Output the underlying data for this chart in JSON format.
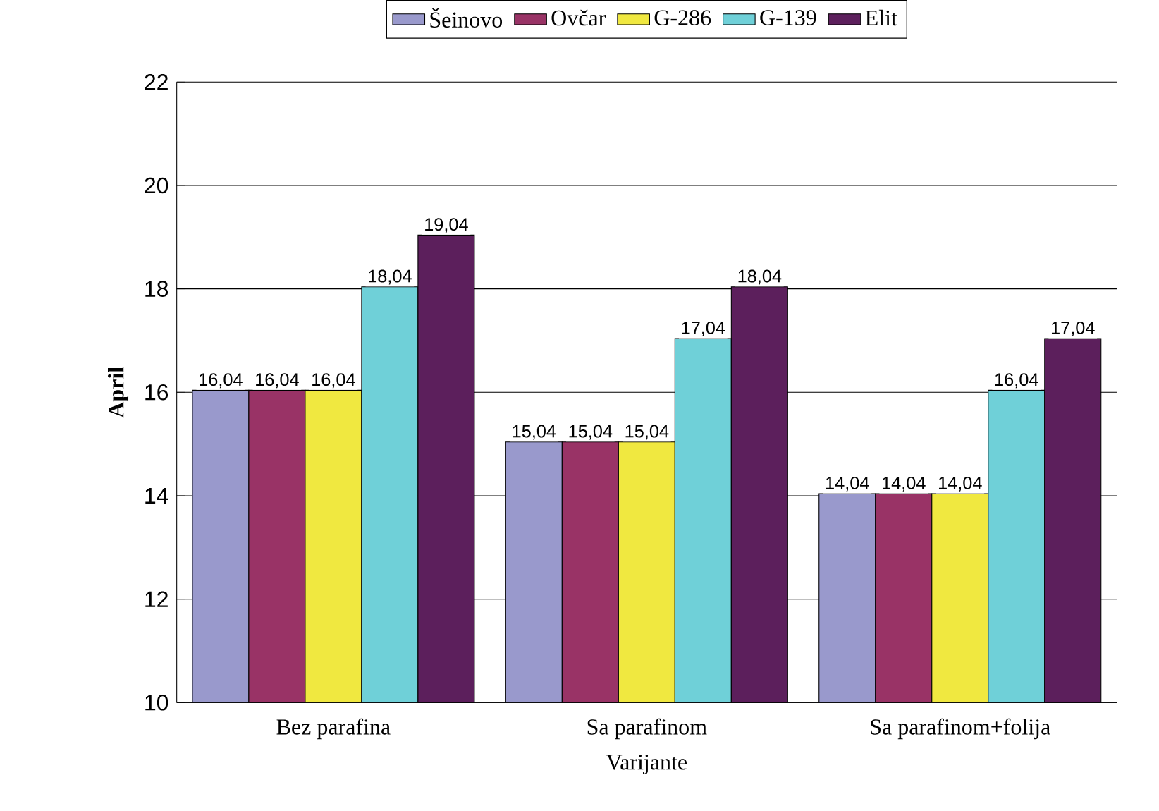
{
  "chart_data": {
    "type": "bar",
    "xlabel": "Varijante",
    "ylabel": "April",
    "categories": [
      "Bez parafina",
      "Sa parafinom",
      "Sa parafinom+folija"
    ],
    "series": [
      {
        "name": "Šeinovo",
        "color": "#9999cc",
        "values": [
          16.04,
          15.04,
          14.04
        ],
        "value_labels": [
          "16,04",
          "15,04",
          "14,04"
        ]
      },
      {
        "name": "Ovčar",
        "color": "#993366",
        "values": [
          16.04,
          15.04,
          14.04
        ],
        "value_labels": [
          "16,04",
          "15,04",
          "14,04"
        ]
      },
      {
        "name": "G-286",
        "color": "#f0e840",
        "values": [
          16.04,
          15.04,
          14.04
        ],
        "value_labels": [
          "16,04",
          "15,04",
          "14,04"
        ]
      },
      {
        "name": "G-139",
        "color": "#6fd0d8",
        "values": [
          18.04,
          17.04,
          16.04
        ],
        "value_labels": [
          "18,04",
          "17,04",
          "16,04"
        ]
      },
      {
        "name": "Elit",
        "color": "#5c1f5c",
        "values": [
          19.04,
          18.04,
          17.04
        ],
        "value_labels": [
          "19,04",
          "18,04",
          "17,04"
        ]
      }
    ],
    "ylim": [
      10,
      22
    ],
    "yticks": [
      10,
      12,
      14,
      16,
      18,
      20,
      22
    ],
    "grid": "y",
    "legend": "top"
  }
}
